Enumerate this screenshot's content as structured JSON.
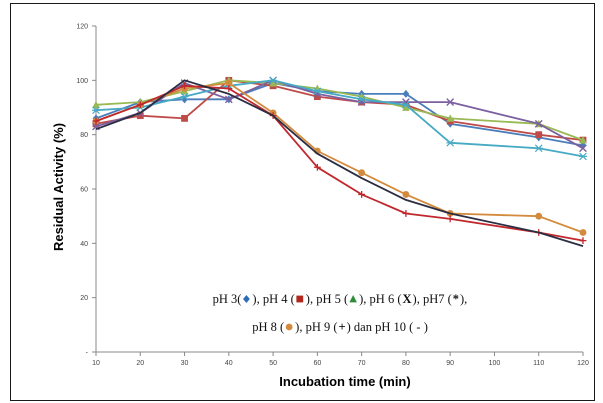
{
  "chart_data": {
    "type": "line",
    "xlabel": "Incubation time (min)",
    "ylabel": "Residual Activity (%)",
    "x": [
      10,
      20,
      30,
      40,
      50,
      60,
      70,
      80,
      90,
      110,
      120
    ],
    "x_ticks": [
      "10",
      "20",
      "30",
      "40",
      "50",
      "60",
      "70",
      "80",
      "90",
      "100",
      "110",
      "120"
    ],
    "xlim": [
      10,
      120
    ],
    "y_ticks": [
      "-",
      "20",
      "40",
      "60",
      "80",
      "100",
      "120"
    ],
    "ylim": [
      0,
      120
    ],
    "grid": false,
    "series": [
      {
        "name": "pH 3",
        "color": "#4a7ebb",
        "marker": "diamond",
        "values": [
          86,
          92,
          93,
          93,
          99,
          96,
          95,
          95,
          84,
          79,
          76
        ]
      },
      {
        "name": "pH 4",
        "color": "#be4b48",
        "marker": "square",
        "values": [
          84,
          87,
          86,
          100,
          98,
          94,
          92,
          91,
          85,
          80,
          78
        ]
      },
      {
        "name": "pH 5",
        "color": "#98b954",
        "marker": "triangle",
        "values": [
          91,
          92,
          96,
          100,
          99,
          97,
          94,
          90,
          86,
          84,
          78
        ]
      },
      {
        "name": "pH 6",
        "color": "#7d60a0",
        "marker": "x",
        "values": [
          83,
          88,
          99,
          93,
          100,
          95,
          92,
          92,
          92,
          84,
          75
        ]
      },
      {
        "name": "pH7",
        "color": "#46aac5",
        "marker": "star",
        "values": [
          89,
          90,
          94,
          98,
          100,
          96,
          93,
          91,
          77,
          75,
          72
        ]
      },
      {
        "name": "pH 8",
        "color": "#d48a3c",
        "marker": "circle",
        "values": [
          85,
          91,
          97,
          99,
          88,
          74,
          66,
          58,
          51,
          50,
          44
        ]
      },
      {
        "name": "pH 9",
        "color": "#c0282d",
        "marker": "plus",
        "values": [
          85,
          91,
          98,
          97,
          87,
          68,
          58,
          51,
          49,
          44,
          41
        ]
      },
      {
        "name": "pH 10",
        "color": "#2b2d42",
        "marker": "dash",
        "values": [
          82,
          88,
          100,
          95,
          87,
          73,
          64,
          56,
          51,
          44,
          39
        ]
      }
    ],
    "legend_lines": [
      [
        {
          "text": "pH 3("
        },
        {
          "marker": "diamond",
          "color": "#2e6db4"
        },
        {
          "text": "), pH 4 ("
        },
        {
          "marker": "square",
          "color": "#b3261e"
        },
        {
          "text": "), pH 5 ("
        },
        {
          "marker": "triangle",
          "color": "#2e8b3a"
        },
        {
          "text": "), pH 6 ("
        },
        {
          "glyph": "X",
          "color": "#7d60a0"
        },
        {
          "text": "), pH7 ("
        },
        {
          "glyph": "*",
          "color": "#000000"
        },
        {
          "text": "),"
        }
      ],
      [
        {
          "text": "pH 8 ("
        },
        {
          "marker": "circle",
          "color": "#d48a3c"
        },
        {
          "text": "), pH 9 ( "
        },
        {
          "glyph": "+",
          "color": "#c0282d"
        },
        {
          "text": " ) dan pH 10 ( - )"
        }
      ]
    ]
  }
}
